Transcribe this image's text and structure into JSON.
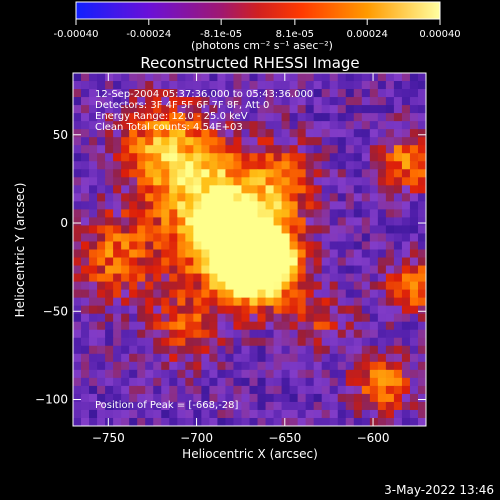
{
  "chart_data": {
    "type": "heatmap",
    "title": "Reconstructed RHESSI Image",
    "xlabel": "Heliocentric X (arcsec)",
    "ylabel": "Heliocentric Y (arcsec)",
    "xlim": [
      -770,
      -570
    ],
    "ylim": [
      -115,
      85
    ],
    "x_ticks": [
      -750,
      -700,
      -650,
      -600
    ],
    "y_ticks": [
      -100,
      -50,
      0,
      50
    ],
    "colorbar": {
      "range": [
        -0.0004,
        0.0004
      ],
      "ticks": [
        -0.0004,
        -0.00024,
        -8.1e-05,
        8.1e-05,
        0.00024,
        0.0004
      ],
      "tick_labels": [
        "-0.00040",
        "-0.00024",
        "-8.1e-05",
        "8.1e-05",
        "0.00024",
        "0.00040"
      ],
      "unit_label": "(photons cm⁻² s⁻¹ asec⁻²)",
      "colors": [
        "#1e00ff",
        "#7a00e0",
        "#c03040",
        "#ff4000",
        "#ff9a00",
        "#ffff50"
      ]
    },
    "annotations": {
      "time": "12-Sep-2004 05:37:36.000 to 05:43:36.000",
      "detectors": "Detectors: 3F 4F 5F 6F 7F 8F, Att 0",
      "energy": "Energy Range: 12.0 - 25.0 keV",
      "clean": "Clean    Total counts: 4.54E+03",
      "peak": "Position of Peak = [-668,-28]"
    },
    "peak": [
      -668,
      -28
    ]
  },
  "footer": {
    "timestamp": "3-May-2022 13:46"
  }
}
